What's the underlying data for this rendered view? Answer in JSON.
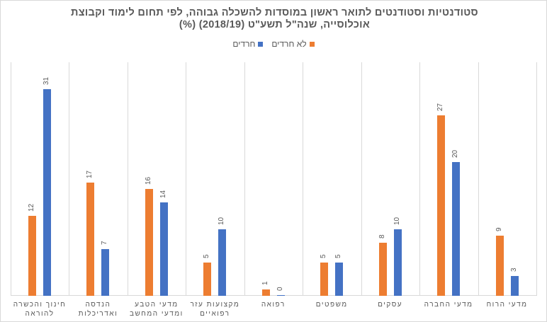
{
  "chart_data": {
    "type": "bar",
    "title": "סטודנטיות וסטודנטים לתואר ראשון במוסדות להשכלה גבוהה, לפי תחום לימוד וקבוצת אוכלוסייה, שנה\"ל תשע\"ט (2018/19) (%)",
    "title_line1": "סטודנטיות וסטודנטים לתואר ראשון במוסדות להשכלה גבוהה, לפי תחום לימוד וקבוצת",
    "title_line2": "אוכלוסייה, שנה\"ל תשע\"ט (2018/19) (%)",
    "xlabel": "",
    "ylabel": "",
    "ylim": [
      0,
      35
    ],
    "grid": "vertical category separators",
    "legend_position": "top",
    "direction": "rtl",
    "categories": [
      "חינוך והכשרה להוראה",
      "הנדסה ואדריכלות",
      "מדעי הטבע ומדעי המחשב",
      "מקצועות עזר רפואיים",
      "רפואה",
      "משפטים",
      "עסקים",
      "מדעי החברה",
      "מדעי הרוח"
    ],
    "category_lines": [
      [
        "חינוך והכשרה",
        "להוראה"
      ],
      [
        "הנדסה",
        "ואדריכלות"
      ],
      [
        "מדעי הטבע",
        "ומדעי המחשב"
      ],
      [
        "מקצועות  עזר",
        "רפואיים"
      ],
      [
        "רפואה",
        ""
      ],
      [
        "משפטים",
        ""
      ],
      [
        "עסקים",
        ""
      ],
      [
        "מדעי החברה",
        ""
      ],
      [
        "מדעי הרוח",
        ""
      ]
    ],
    "series": [
      {
        "name": "לא חרדים",
        "color": "#ED7D31",
        "values": [
          12,
          17,
          16,
          5,
          1,
          5,
          8,
          27,
          9
        ]
      },
      {
        "name": "חרדים",
        "color": "#4472C4",
        "values": [
          31,
          7,
          14,
          10,
          0,
          5,
          10,
          20,
          3
        ]
      }
    ]
  },
  "legend": {
    "items": [
      {
        "label": "לא חרדים",
        "color": "#ED7D31"
      },
      {
        "label": "חרדים",
        "color": "#4472C4"
      }
    ]
  }
}
